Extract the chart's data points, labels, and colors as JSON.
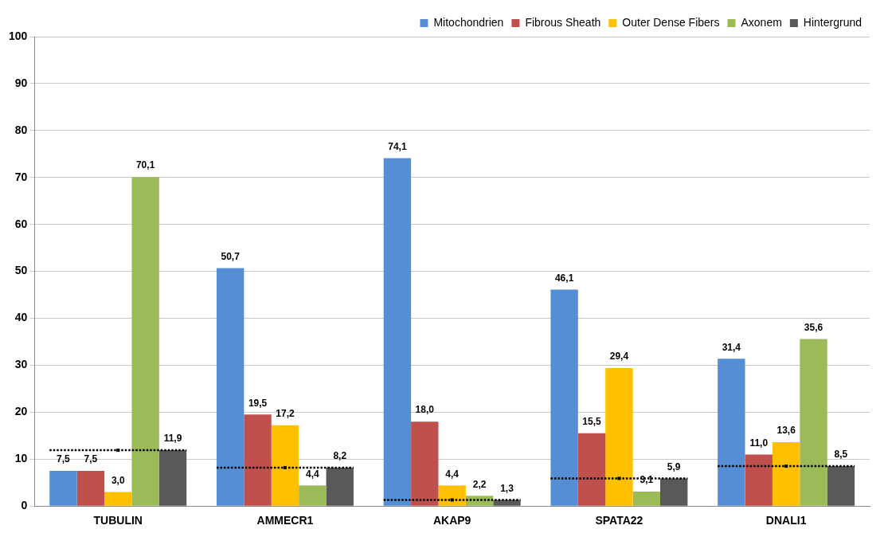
{
  "chart_data": {
    "type": "bar",
    "categories": [
      "TUBULIN",
      "AMMECR1",
      "AKAP9",
      "SPATA22",
      "DNALI1"
    ],
    "series": [
      {
        "name": "Mitochondrien",
        "color": "#558ed5",
        "values": [
          7.5,
          50.7,
          74.1,
          46.1,
          31.4
        ],
        "value_labels": [
          "7,5",
          "50,7",
          "74,1",
          "46,1",
          "31,4"
        ]
      },
      {
        "name": "Fibrous Sheath",
        "color": "#c0504d",
        "values": [
          7.5,
          19.5,
          18.0,
          15.5,
          11.0
        ],
        "value_labels": [
          "7,5",
          "19,5",
          "18,0",
          "15,5",
          "11,0"
        ]
      },
      {
        "name": "Outer Dense Fibers",
        "color": "#ffc000",
        "values": [
          3.0,
          17.2,
          4.4,
          29.4,
          13.6
        ],
        "value_labels": [
          "3,0",
          "17,2",
          "4,4",
          "29,4",
          "13,6"
        ]
      },
      {
        "name": "Axonem",
        "color": "#9bbb59",
        "values": [
          70.1,
          4.4,
          2.2,
          3.1,
          35.6
        ],
        "value_labels": [
          "70,1",
          "4,4",
          "2,2",
          "3,1",
          "35,6"
        ]
      },
      {
        "name": "Hintergrund",
        "color": "#595959",
        "values": [
          11.9,
          8.2,
          1.3,
          5.9,
          8.5
        ],
        "value_labels": [
          "11,9",
          "8,2",
          "1,3",
          "5,9",
          "8,5"
        ]
      },
      {
        "type": "line",
        "line_style": "dotted",
        "marker": "square",
        "color": "#000000",
        "values": [
          11.9,
          null,
          null,
          null,
          null
        ]
      },
      {
        "type": "line",
        "line_style": "dotted",
        "marker": "square",
        "color": "#000000",
        "values": [
          null,
          8.2,
          null,
          null,
          null
        ]
      },
      {
        "type": "line",
        "line_style": "dotted",
        "marker": "square",
        "color": "#000000",
        "values": [
          null,
          null,
          1.3,
          null,
          null
        ]
      },
      {
        "type": "line",
        "line_style": "dotted",
        "marker": "square",
        "color": "#000000",
        "values": [
          null,
          null,
          null,
          5.9,
          null
        ]
      },
      {
        "type": "line",
        "line_style": "dotted",
        "marker": "square",
        "color": "#000000",
        "values": [
          null,
          null,
          null,
          null,
          8.5
        ]
      }
    ],
    "ylim": [
      0,
      100
    ],
    "yticks": [
      0,
      10,
      20,
      30,
      40,
      50,
      60,
      70,
      80,
      90,
      100
    ],
    "grid": "y",
    "legend": "top right"
  }
}
